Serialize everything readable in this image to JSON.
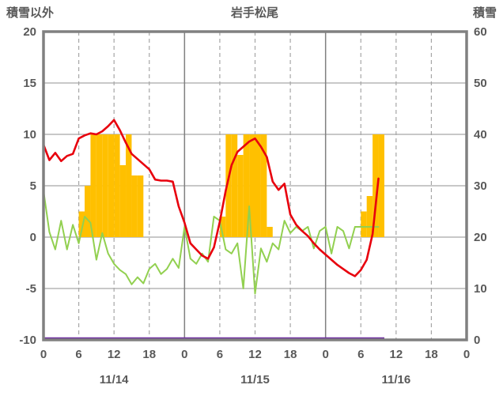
{
  "titles": {
    "left": "積雪以外",
    "center": "岩手松尾",
    "right": "積雪"
  },
  "colors": {
    "temperature_line": "#e8000d",
    "green_line": "#92d050",
    "sunshine_bars": "#ffc000",
    "snow_depth_line": "#7030a0",
    "axis_text": "#595959",
    "frame": "#808080",
    "grid": "#a6a6a6",
    "day_grid": "#808080",
    "background": "#ffffff"
  },
  "chart_data": {
    "type": "line+bar",
    "title": "岩手松尾",
    "left_axis": {
      "label": "積雪以外",
      "min": -10,
      "max": 20,
      "ticks": [
        20,
        15,
        10,
        5,
        0,
        -5,
        -10
      ]
    },
    "right_axis": {
      "label": "積雪",
      "min": 0,
      "max": 60,
      "ticks": [
        60,
        50,
        40,
        30,
        20,
        10,
        0
      ]
    },
    "x_axis": {
      "unit": "hour",
      "min": 0,
      "max": 72,
      "tick_step": 6,
      "tick_labels": [
        "0",
        "6",
        "12",
        "18",
        "0",
        "6",
        "12",
        "18",
        "0",
        "6",
        "12",
        "18",
        "0"
      ],
      "day_labels": [
        "11/14",
        "11/15",
        "11/16"
      ],
      "day_label_hours": [
        12,
        36,
        60
      ],
      "grid": true
    },
    "series": [
      {
        "name": "sunshine-bars",
        "type": "bar",
        "axis": "left",
        "color_key": "sunshine_bars",
        "values": [
          0,
          0,
          0,
          0,
          0,
          0,
          2.5,
          5,
          10,
          10,
          10,
          10,
          10,
          7,
          10,
          6,
          6,
          0,
          0,
          0,
          0,
          0,
          0,
          0,
          0,
          0,
          0,
          0,
          0,
          0,
          2,
          10,
          10,
          8,
          10,
          10,
          10,
          10,
          1,
          0,
          0,
          0,
          0,
          0,
          0,
          0,
          0,
          0,
          0,
          0,
          0,
          0,
          0,
          0,
          2.5,
          4,
          10,
          10
        ]
      },
      {
        "name": "green-line",
        "type": "line",
        "axis": "left",
        "color_key": "green_line",
        "width": 2,
        "values": [
          4.5,
          0.5,
          -1.2,
          1.6,
          -1.2,
          1.2,
          -0.6,
          2,
          1.4,
          -2.2,
          0.4,
          -1.6,
          -2.6,
          -3.2,
          -3.6,
          -4.6,
          -3.9,
          -4.5,
          -3.1,
          -2.6,
          -3.6,
          -3.1,
          -2.1,
          -3,
          1,
          -2.1,
          -2.6,
          -1.6,
          -2.4,
          2,
          1.6,
          -1.2,
          -1.6,
          -0.6,
          -5,
          3,
          -5.5,
          -1.1,
          -2.4,
          -0.6,
          -1.2,
          1.6,
          0.4,
          1,
          0.6,
          1,
          -1.1,
          0.6,
          1,
          -1.6,
          1,
          0.6,
          -1.1,
          1,
          1,
          1,
          1,
          1
        ]
      },
      {
        "name": "temperature-line",
        "type": "line",
        "axis": "left",
        "color_key": "temperature_line",
        "width": 2.6,
        "values": [
          9,
          7.5,
          8.2,
          7.4,
          7.9,
          8.1,
          9.6,
          9.9,
          10.1,
          10,
          10.3,
          10.8,
          11.4,
          10.4,
          9.2,
          8.1,
          7.6,
          7.1,
          6.6,
          5.6,
          5.5,
          5.5,
          5.4,
          3,
          1.4,
          -0.6,
          -1.2,
          -1.8,
          -2.1,
          -1,
          1.5,
          4.5,
          7,
          8.3,
          8.8,
          9.3,
          9.6,
          8.8,
          7.8,
          5.4,
          4.6,
          5.2,
          2.2,
          1.2,
          0.6,
          0.1,
          -0.6,
          -1.2,
          -1.7,
          -2.2,
          -2.7,
          -3.1,
          -3.5,
          -3.8,
          -3.2,
          -2.2,
          0.3,
          5.7
        ]
      },
      {
        "name": "snow-depth-line",
        "type": "hline",
        "axis": "right",
        "color_key": "snow_depth_line",
        "width": 2.5,
        "value": 0,
        "from_hour": 0,
        "to_hour": 58
      }
    ]
  }
}
